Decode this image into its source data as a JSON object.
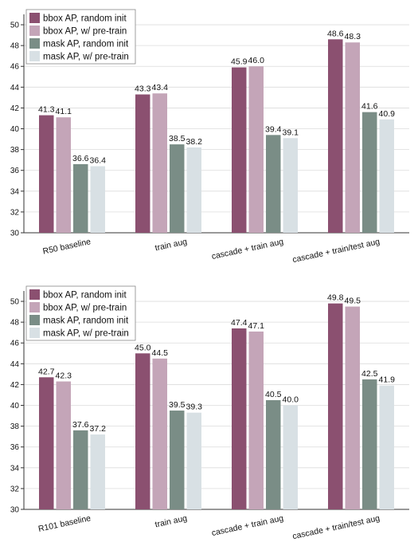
{
  "colors": {
    "bbox_random": "#8b5070",
    "bbox_pretrain": "#c4a5b8",
    "mask_random": "#7a8d86",
    "mask_pretrain": "#d8e0e4",
    "axis": "#333333",
    "grid": "#dcdcdc"
  },
  "chart_data": [
    {
      "type": "bar",
      "categories": [
        "R50 baseline",
        "train aug",
        "cascade + train aug",
        "cascade + train/test aug"
      ],
      "series": [
        {
          "name": "bbox AP, random init",
          "values": [
            41.3,
            43.3,
            45.9,
            48.6
          ]
        },
        {
          "name": "bbox AP, w/ pre-train",
          "values": [
            41.1,
            43.4,
            46.0,
            48.3
          ]
        },
        {
          "name": "mask AP, random init",
          "values": [
            36.6,
            38.5,
            39.4,
            41.6
          ]
        },
        {
          "name": "mask AP, w/ pre-train",
          "values": [
            36.4,
            38.2,
            39.1,
            40.9
          ]
        }
      ],
      "ylim": [
        30,
        51
      ],
      "yticks": [
        30,
        32,
        34,
        36,
        38,
        40,
        42,
        44,
        46,
        48,
        50
      ],
      "grid": true,
      "legend": "top-left"
    },
    {
      "type": "bar",
      "categories": [
        "R101 baseline",
        "train aug",
        "cascade + train aug",
        "cascade + train/test aug"
      ],
      "series": [
        {
          "name": "bbox AP, random init",
          "values": [
            42.7,
            45.0,
            47.4,
            49.8
          ]
        },
        {
          "name": "bbox AP, w/ pre-train",
          "values": [
            42.3,
            44.5,
            47.1,
            49.5
          ]
        },
        {
          "name": "mask AP, random init",
          "values": [
            37.6,
            39.5,
            40.5,
            42.5
          ]
        },
        {
          "name": "mask AP, w/ pre-train",
          "values": [
            37.2,
            39.3,
            40.0,
            41.9
          ]
        }
      ],
      "ylim": [
        30,
        51
      ],
      "yticks": [
        30,
        32,
        34,
        36,
        38,
        40,
        42,
        44,
        46,
        48,
        50
      ],
      "grid": true,
      "legend": "top-left"
    }
  ]
}
